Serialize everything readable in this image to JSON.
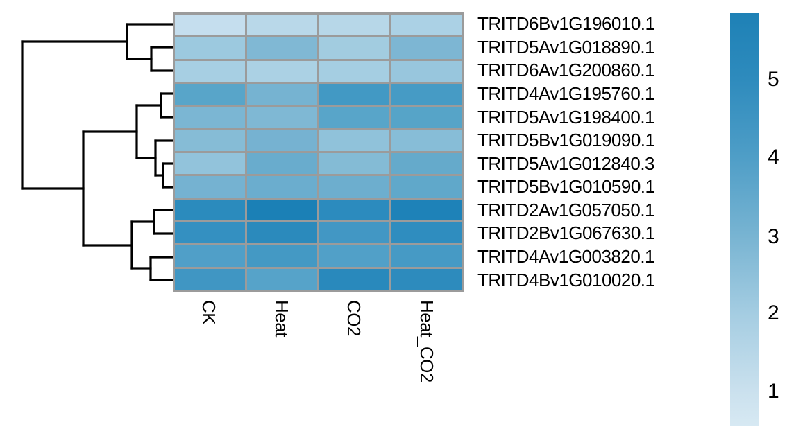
{
  "chart_data": {
    "type": "heatmap",
    "title": "",
    "columns": [
      "CK",
      "Heat",
      "CO2",
      "Heat_CO2"
    ],
    "rows": [
      "TRITD6Bv1G196010.1",
      "TRITD5Av1G018890.1",
      "TRITD6Av1G200860.1",
      "TRITD4Av1G195760.1",
      "TRITD5Av1G198400.1",
      "TRITD5Bv1G019090.1",
      "TRITD5Av1G012840.3",
      "TRITD5Bv1G010590.1",
      "TRITD2Av1G057050.1",
      "TRITD2Bv1G067630.1",
      "TRITD4Av1G003820.1",
      "TRITD4Bv1G010020.1"
    ],
    "series": [
      {
        "name": "TRITD6Bv1G196010.1",
        "values": [
          1.2,
          1.5,
          1.6,
          1.9
        ]
      },
      {
        "name": "TRITD5Av1G018890.1",
        "values": [
          2.2,
          2.8,
          2.1,
          2.9
        ]
      },
      {
        "name": "TRITD6Av1G200860.1",
        "values": [
          2.0,
          1.9,
          2.0,
          2.3
        ]
      },
      {
        "name": "TRITD4Av1G195760.1",
        "values": [
          3.8,
          3.1,
          4.4,
          4.3
        ]
      },
      {
        "name": "TRITD5Av1G198400.1",
        "values": [
          3.0,
          2.9,
          3.8,
          3.8
        ]
      },
      {
        "name": "TRITD5Bv1G019090.1",
        "values": [
          2.7,
          3.1,
          2.5,
          2.7
        ]
      },
      {
        "name": "TRITD5Av1G012840.3",
        "values": [
          2.4,
          3.4,
          2.8,
          3.5
        ]
      },
      {
        "name": "TRITD5Bv1G010590.1",
        "values": [
          3.1,
          3.3,
          3.3,
          3.6
        ]
      },
      {
        "name": "TRITD2Av1G057050.1",
        "values": [
          5.1,
          5.8,
          5.1,
          5.6
        ]
      },
      {
        "name": "TRITD2Bv1G067630.1",
        "values": [
          4.9,
          5.1,
          4.4,
          5.0
        ]
      },
      {
        "name": "TRITD4Av1G003820.1",
        "values": [
          4.0,
          4.4,
          4.0,
          4.3
        ]
      },
      {
        "name": "TRITD4Bv1G010020.1",
        "values": [
          4.5,
          3.9,
          5.2,
          5.1
        ]
      }
    ],
    "cell_colors": [
      [
        "#c5deee",
        "#b9d8e9",
        "#b7d7e8",
        "#abd1e5"
      ],
      [
        "#9cc9df",
        "#80b8d4",
        "#a2cce0",
        "#7db6d3"
      ],
      [
        "#a7cfe3",
        "#abd1e4",
        "#a5cee2",
        "#98c6dd"
      ],
      [
        "#58a5c9",
        "#76b3d1",
        "#4299c4",
        "#469bc5"
      ],
      [
        "#7bb6d3",
        "#7fb8d4",
        "#58a5c9",
        "#56a4c8"
      ],
      [
        "#86bcd6",
        "#76b2d1",
        "#90c2da",
        "#87bdd7"
      ],
      [
        "#92c3db",
        "#69accd",
        "#84bbd5",
        "#65aacb"
      ],
      [
        "#75b2d1",
        "#6badce",
        "#6daece",
        "#60a8ca"
      ],
      [
        "#2b8bbd",
        "#1b80b6",
        "#2c8bbe",
        "#1e82b8"
      ],
      [
        "#3490c1",
        "#2b8abc",
        "#4297c4",
        "#2f8dbf"
      ],
      [
        "#509fc8",
        "#4499c4",
        "#51a0c8",
        "#469ac5"
      ],
      [
        "#4096c3",
        "#56a3c9",
        "#2989bc",
        "#2d8bbd"
      ]
    ],
    "grid_color": "#9b9b9b",
    "colorbar": {
      "position": "right",
      "ticks": [
        "5",
        "4",
        "3",
        "2",
        "1"
      ],
      "value_range": [
        0.5,
        5.9
      ],
      "gradient_stops": [
        {
          "color": "#1e81b6",
          "pos": 0
        },
        {
          "color": "#2e8bbd",
          "pos": 16
        },
        {
          "color": "#4f9ec7",
          "pos": 35
        },
        {
          "color": "#78b4d2",
          "pos": 54
        },
        {
          "color": "#a5cde2",
          "pos": 73
        },
        {
          "color": "#cbe1ee",
          "pos": 92
        },
        {
          "color": "#d7e9f3",
          "pos": 100
        }
      ]
    },
    "row_dendrogram": {
      "newick_like": "((1,(2,3)),(((4,5),(6,(7,8))),((9,10),(11,12))))",
      "line_color": "#000000",
      "segments": [
        [
          183,
          35,
          249,
          35
        ],
        [
          218,
          68,
          249,
          68
        ],
        [
          218,
          102,
          249,
          102
        ],
        [
          232,
          135,
          249,
          135
        ],
        [
          232,
          169,
          249,
          169
        ],
        [
          224,
          203,
          249,
          203
        ],
        [
          235,
          236,
          249,
          236
        ],
        [
          235,
          270,
          249,
          270
        ],
        [
          222,
          303,
          249,
          303
        ],
        [
          222,
          337,
          249,
          337
        ],
        [
          217,
          371,
          249,
          371
        ],
        [
          217,
          404,
          249,
          404
        ],
        [
          218,
          68,
          218,
          102
        ],
        [
          183,
          85,
          218,
          85
        ],
        [
          183,
          35,
          183,
          85
        ],
        [
          32,
          60,
          183,
          60
        ],
        [
          232,
          135,
          232,
          169
        ],
        [
          197,
          152,
          232,
          152
        ],
        [
          235,
          236,
          235,
          270
        ],
        [
          224,
          253,
          235,
          253
        ],
        [
          224,
          203,
          224,
          253
        ],
        [
          197,
          228,
          224,
          228
        ],
        [
          197,
          152,
          197,
          228
        ],
        [
          120,
          190,
          197,
          190
        ],
        [
          222,
          303,
          222,
          337
        ],
        [
          190,
          320,
          222,
          320
        ],
        [
          217,
          371,
          217,
          404
        ],
        [
          190,
          387,
          217,
          387
        ],
        [
          190,
          320,
          190,
          387
        ],
        [
          120,
          354,
          190,
          354
        ],
        [
          120,
          190,
          120,
          354
        ],
        [
          32,
          272,
          120,
          272
        ],
        [
          32,
          60,
          32,
          272
        ]
      ]
    }
  }
}
